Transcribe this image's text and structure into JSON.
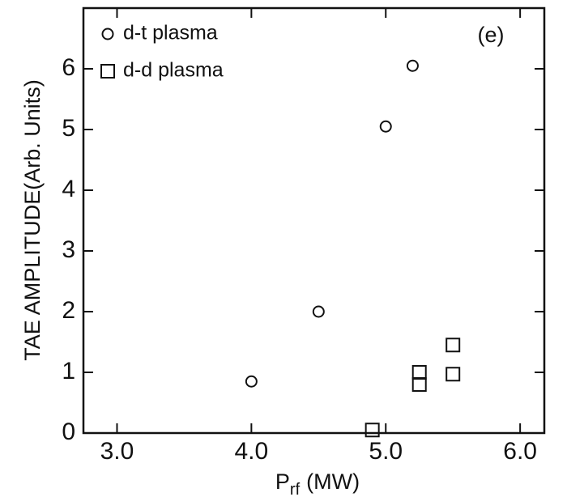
{
  "chart_data": {
    "type": "scatter",
    "ylabel": "TAE AMPLITUDE(Arb. Units)",
    "xlabel_parts": [
      "P",
      "rf",
      "(MW)"
    ],
    "annotation": "(e)",
    "xlim": [
      2.75,
      6.18
    ],
    "ylim": [
      0,
      7
    ],
    "xticks": [
      {
        "value": 3,
        "label": "3.0"
      },
      {
        "value": 4,
        "label": "4.0"
      },
      {
        "value": 5,
        "label": "5.0"
      },
      {
        "value": 6,
        "label": "6.0"
      }
    ],
    "yticks": [
      0,
      1,
      2,
      3,
      4,
      5,
      6
    ],
    "series": [
      {
        "name": "d-t plasma",
        "marker": "circle",
        "color": "#111111",
        "x": [
          4.0,
          4.5,
          5.0,
          5.2
        ],
        "values": [
          0.85,
          2.0,
          5.05,
          6.05
        ]
      },
      {
        "name": "d-d plasma",
        "marker": "square",
        "color": "#111111",
        "x": [
          4.9,
          5.25,
          5.25,
          5.5,
          5.5
        ],
        "values": [
          0.05,
          1.0,
          0.8,
          1.45,
          0.97
        ]
      }
    ]
  }
}
